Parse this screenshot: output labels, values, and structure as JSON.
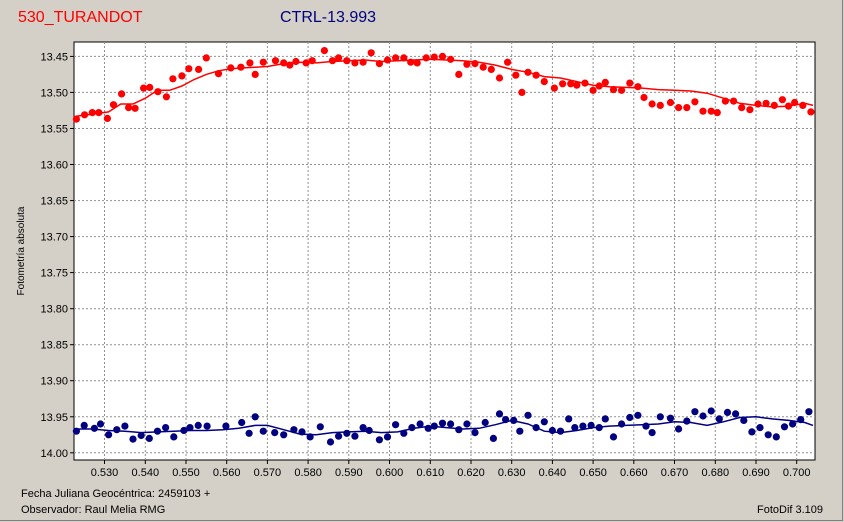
{
  "header": {
    "target": "530_TURANDOT",
    "comparison": "CTRL-13.993"
  },
  "footer": {
    "date_label": "Fecha Juliana Geocéntrica: 2459103 +",
    "observer_label": "Observador: Raul Melia RMG",
    "software": "FotoDif 3.109"
  },
  "colors": {
    "target": "#ff0000",
    "comparison": "#000080",
    "background": "#d4d0c8",
    "plot_bg": "#ffffff",
    "grid": "#909090"
  },
  "chart_data": {
    "type": "scatter",
    "title": "",
    "ylabel": "Fotometría absoluta",
    "xlabel": "",
    "xlim": [
      0.5225,
      0.7045
    ],
    "ylim": [
      13.43,
      14.01
    ],
    "y_inverted": true,
    "grid": true,
    "x_ticks": [
      0.53,
      0.54,
      0.55,
      0.56,
      0.57,
      0.58,
      0.59,
      0.6,
      0.61,
      0.62,
      0.63,
      0.64,
      0.65,
      0.66,
      0.67,
      0.68,
      0.69,
      0.7
    ],
    "x_tick_labels": [
      "0.530",
      "0.540",
      "0.550",
      "0.560",
      "0.570",
      "0.580",
      "0.590",
      "0.600",
      "0.610",
      "0.620",
      "0.630",
      "0.640",
      "0.650",
      "0.660",
      "0.670",
      "0.680",
      "0.690",
      "0.700"
    ],
    "y_ticks": [
      13.45,
      13.5,
      13.55,
      13.6,
      13.65,
      13.7,
      13.75,
      13.8,
      13.85,
      13.9,
      13.95,
      14.0
    ],
    "y_tick_labels": [
      "13.45",
      "13.50",
      "13.55",
      "13.60",
      "13.65",
      "13.70",
      "13.75",
      "13.80",
      "13.85",
      "13.90",
      "13.95",
      "14.00"
    ],
    "series": [
      {
        "color": "#ff0000",
        "x": [
          0.5231,
          0.5251,
          0.527,
          0.5286,
          0.5307,
          0.5322,
          0.5342,
          0.5359,
          0.5375,
          0.5396,
          0.5411,
          0.5431,
          0.5452,
          0.5468,
          0.549,
          0.5507,
          0.5531,
          0.555,
          0.558,
          0.561,
          0.5635,
          0.5657,
          0.567,
          0.569,
          0.572,
          0.574,
          0.5755,
          0.577,
          0.5795,
          0.581,
          0.584,
          0.586,
          0.5875,
          0.5895,
          0.5915,
          0.5935,
          0.5955,
          0.5975,
          0.5995,
          0.6015,
          0.6035,
          0.6052,
          0.6068,
          0.609,
          0.611,
          0.613,
          0.615,
          0.617,
          0.619,
          0.621,
          0.623,
          0.625,
          0.627,
          0.629,
          0.631,
          0.6325,
          0.634,
          0.636,
          0.638,
          0.6405,
          0.6425,
          0.6445,
          0.646,
          0.648,
          0.65,
          0.6515,
          0.653,
          0.655,
          0.657,
          0.659,
          0.661,
          0.6625,
          0.6645,
          0.6665,
          0.669,
          0.671,
          0.673,
          0.675,
          0.677,
          0.679,
          0.6805,
          0.6825,
          0.6845,
          0.6865,
          0.6885,
          0.6905,
          0.6925,
          0.6945,
          0.6965,
          0.698,
          0.6995,
          0.7015,
          0.7035
        ],
        "y": [
          13.537,
          13.531,
          13.528,
          13.528,
          13.536,
          13.517,
          13.502,
          13.521,
          13.522,
          13.494,
          13.493,
          13.499,
          13.506,
          13.481,
          13.477,
          13.467,
          13.468,
          13.452,
          13.474,
          13.466,
          13.465,
          13.459,
          13.475,
          13.458,
          13.456,
          13.459,
          13.462,
          13.457,
          13.459,
          13.456,
          13.442,
          13.456,
          13.452,
          13.456,
          13.459,
          13.458,
          13.445,
          13.46,
          13.455,
          13.452,
          13.452,
          13.458,
          13.459,
          13.452,
          13.451,
          13.45,
          13.454,
          13.475,
          13.461,
          13.46,
          13.465,
          13.468,
          13.48,
          13.458,
          13.476,
          13.5,
          13.472,
          13.476,
          13.485,
          13.494,
          13.488,
          13.488,
          13.49,
          13.487,
          13.497,
          13.491,
          13.486,
          13.496,
          13.497,
          13.487,
          13.492,
          13.507,
          13.516,
          13.518,
          13.514,
          13.521,
          13.521,
          13.513,
          13.526,
          13.526,
          13.528,
          13.512,
          13.512,
          13.521,
          13.524,
          13.516,
          13.515,
          13.518,
          13.51,
          13.519,
          13.514,
          13.518,
          13.527
        ]
      },
      {
        "color": "#000080",
        "x": [
          0.5231,
          0.525,
          0.5275,
          0.529,
          0.531,
          0.533,
          0.535,
          0.537,
          0.539,
          0.541,
          0.543,
          0.545,
          0.547,
          0.5495,
          0.551,
          0.553,
          0.5552,
          0.5598,
          0.5637,
          0.5655,
          0.567,
          0.569,
          0.5718,
          0.574,
          0.5765,
          0.5785,
          0.5805,
          0.583,
          0.5855,
          0.5875,
          0.5895,
          0.5915,
          0.5935,
          0.595,
          0.5975,
          0.5995,
          0.6015,
          0.6035,
          0.6055,
          0.6075,
          0.6095,
          0.611,
          0.613,
          0.615,
          0.617,
          0.619,
          0.621,
          0.6235,
          0.6255,
          0.627,
          0.6285,
          0.6305,
          0.632,
          0.634,
          0.636,
          0.638,
          0.64,
          0.642,
          0.644,
          0.6455,
          0.6475,
          0.6495,
          0.6515,
          0.653,
          0.655,
          0.657,
          0.659,
          0.661,
          0.663,
          0.6645,
          0.6665,
          0.669,
          0.671,
          0.673,
          0.675,
          0.677,
          0.679,
          0.681,
          0.683,
          0.685,
          0.687,
          0.689,
          0.691,
          0.693,
          0.695,
          0.697,
          0.699,
          0.701,
          0.703
        ],
        "y": [
          13.97,
          13.962,
          13.966,
          13.96,
          13.975,
          13.968,
          13.963,
          13.981,
          13.976,
          13.98,
          13.97,
          13.965,
          13.978,
          13.969,
          13.965,
          13.962,
          13.963,
          13.963,
          13.958,
          13.973,
          13.95,
          13.97,
          13.972,
          13.975,
          13.968,
          13.971,
          13.978,
          13.964,
          13.985,
          13.977,
          13.973,
          13.977,
          13.965,
          13.969,
          13.982,
          13.978,
          13.961,
          13.973,
          13.965,
          13.96,
          13.966,
          13.963,
          13.959,
          13.96,
          13.968,
          13.96,
          13.972,
          13.958,
          13.98,
          13.946,
          13.954,
          13.955,
          13.97,
          13.948,
          13.965,
          13.957,
          13.969,
          13.97,
          13.953,
          13.965,
          13.963,
          13.962,
          13.965,
          13.953,
          13.978,
          13.96,
          13.951,
          13.948,
          13.963,
          13.972,
          13.95,
          13.952,
          13.967,
          13.956,
          13.943,
          13.949,
          13.942,
          13.953,
          13.944,
          13.946,
          13.955,
          13.971,
          13.965,
          13.975,
          13.978,
          13.964,
          13.96,
          13.954,
          13.943
        ]
      }
    ],
    "fit_lines": [
      {
        "color": "#ff0000",
        "x": [
          0.523,
          0.527,
          0.531,
          0.534,
          0.537,
          0.54,
          0.543,
          0.546,
          0.549,
          0.552,
          0.555,
          0.558,
          0.561,
          0.564,
          0.567,
          0.57,
          0.574,
          0.578,
          0.582,
          0.586,
          0.59,
          0.594,
          0.598,
          0.602,
          0.606,
          0.61,
          0.614,
          0.618,
          0.622,
          0.626,
          0.63,
          0.634,
          0.638,
          0.642,
          0.646,
          0.65,
          0.654,
          0.658,
          0.662,
          0.666,
          0.67,
          0.674,
          0.678,
          0.682,
          0.686,
          0.69,
          0.694,
          0.698,
          0.702,
          0.704
        ],
        "y": [
          13.533,
          13.53,
          13.527,
          13.516,
          13.516,
          13.508,
          13.497,
          13.497,
          13.491,
          13.482,
          13.475,
          13.47,
          13.467,
          13.466,
          13.465,
          13.464,
          13.46,
          13.458,
          13.459,
          13.457,
          13.456,
          13.455,
          13.457,
          13.456,
          13.455,
          13.454,
          13.455,
          13.456,
          13.458,
          13.462,
          13.468,
          13.472,
          13.478,
          13.48,
          13.485,
          13.49,
          13.492,
          13.493,
          13.494,
          13.496,
          13.497,
          13.498,
          13.501,
          13.508,
          13.515,
          13.518,
          13.52,
          13.519,
          13.515,
          13.518
        ]
      },
      {
        "color": "#000080",
        "x": [
          0.523,
          0.527,
          0.531,
          0.535,
          0.539,
          0.543,
          0.547,
          0.551,
          0.555,
          0.559,
          0.563,
          0.567,
          0.57,
          0.574,
          0.578,
          0.582,
          0.586,
          0.59,
          0.594,
          0.598,
          0.602,
          0.606,
          0.61,
          0.614,
          0.618,
          0.622,
          0.626,
          0.63,
          0.634,
          0.638,
          0.642,
          0.646,
          0.65,
          0.654,
          0.658,
          0.662,
          0.666,
          0.67,
          0.674,
          0.678,
          0.682,
          0.686,
          0.69,
          0.694,
          0.698,
          0.702,
          0.704
        ],
        "y": [
          13.967,
          13.967,
          13.969,
          13.97,
          13.972,
          13.971,
          13.97,
          13.969,
          13.969,
          13.968,
          13.966,
          13.962,
          13.962,
          13.968,
          13.974,
          13.975,
          13.972,
          13.971,
          13.97,
          13.972,
          13.971,
          13.966,
          13.963,
          13.965,
          13.967,
          13.966,
          13.961,
          13.955,
          13.96,
          13.97,
          13.972,
          13.969,
          13.965,
          13.963,
          13.962,
          13.961,
          13.96,
          13.957,
          13.958,
          13.962,
          13.957,
          13.951,
          13.95,
          13.953,
          13.955,
          13.958,
          13.962
        ]
      }
    ]
  }
}
